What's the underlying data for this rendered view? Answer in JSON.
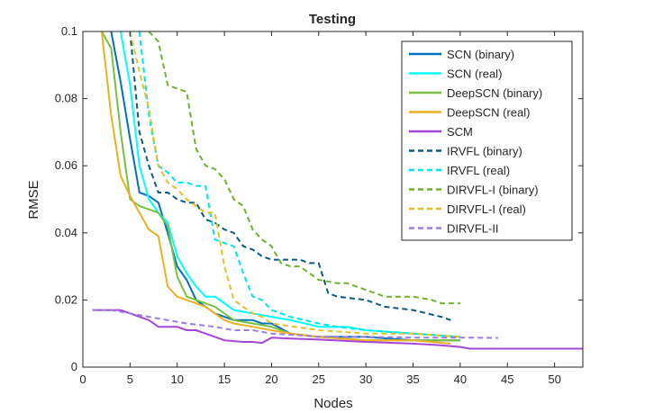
{
  "chart_data": {
    "type": "line",
    "title": "Testing",
    "xlabel": "Nodes",
    "ylabel": "RMSE",
    "xlim": [
      0,
      53
    ],
    "ylim": [
      0,
      0.1
    ],
    "xticks": [
      0,
      5,
      10,
      15,
      20,
      25,
      30,
      35,
      40,
      45,
      50
    ],
    "yticks": [
      0,
      0.02,
      0.04,
      0.06,
      0.08,
      0.1
    ],
    "ytick_labels": [
      "0",
      "0.02",
      "0.04",
      "0.06",
      "0.08",
      "0.1"
    ],
    "legend_position": "top-right",
    "series": [
      {
        "name": "SCN (binary)",
        "color": "#0072BD",
        "dash": "solid",
        "points": [
          [
            3,
            0.1
          ],
          [
            4,
            0.085
          ],
          [
            5,
            0.068
          ],
          [
            6,
            0.052
          ],
          [
            7,
            0.051
          ],
          [
            8,
            0.049
          ],
          [
            9,
            0.04
          ],
          [
            10,
            0.03
          ],
          [
            11,
            0.026
          ],
          [
            12,
            0.02
          ],
          [
            13,
            0.018
          ],
          [
            14,
            0.016
          ],
          [
            15,
            0.015
          ],
          [
            16,
            0.014
          ],
          [
            18,
            0.014
          ],
          [
            19,
            0.013
          ],
          [
            20,
            0.013
          ],
          [
            22,
            0.01
          ],
          [
            25,
            0.009
          ],
          [
            30,
            0.009
          ],
          [
            35,
            0.008
          ],
          [
            40,
            0.008
          ]
        ]
      },
      {
        "name": "SCN (real)",
        "color": "#00FFFF",
        "dash": "solid",
        "points": [
          [
            4,
            0.1
          ],
          [
            5,
            0.084
          ],
          [
            6,
            0.06
          ],
          [
            7,
            0.05
          ],
          [
            8,
            0.046
          ],
          [
            9,
            0.043
          ],
          [
            10,
            0.033
          ],
          [
            11,
            0.028
          ],
          [
            12,
            0.024
          ],
          [
            13,
            0.021
          ],
          [
            14,
            0.021
          ],
          [
            15,
            0.019
          ],
          [
            16,
            0.017
          ],
          [
            18,
            0.016
          ],
          [
            20,
            0.015
          ],
          [
            22,
            0.014
          ],
          [
            25,
            0.012
          ],
          [
            28,
            0.012
          ],
          [
            30,
            0.011
          ],
          [
            35,
            0.01
          ],
          [
            40,
            0.009
          ]
        ]
      },
      {
        "name": "DeepSCN (binary)",
        "color": "#77C040",
        "dash": "solid",
        "points": [
          [
            2,
            0.1
          ],
          [
            3,
            0.095
          ],
          [
            4,
            0.07
          ],
          [
            5,
            0.05
          ],
          [
            6,
            0.048
          ],
          [
            7,
            0.047
          ],
          [
            8,
            0.046
          ],
          [
            9,
            0.042
          ],
          [
            10,
            0.027
          ],
          [
            11,
            0.021
          ],
          [
            12,
            0.02
          ],
          [
            13,
            0.019
          ],
          [
            14,
            0.018
          ],
          [
            15,
            0.016
          ],
          [
            16,
            0.014
          ],
          [
            18,
            0.013
          ],
          [
            20,
            0.012
          ],
          [
            22,
            0.01
          ],
          [
            25,
            0.009
          ],
          [
            30,
            0.008
          ],
          [
            35,
            0.008
          ],
          [
            40,
            0.008
          ]
        ]
      },
      {
        "name": "DeepSCN (real)",
        "color": "#EDB120",
        "dash": "solid",
        "points": [
          [
            2,
            0.1
          ],
          [
            3,
            0.075
          ],
          [
            4,
            0.057
          ],
          [
            5,
            0.051
          ],
          [
            6,
            0.046
          ],
          [
            7,
            0.041
          ],
          [
            8,
            0.039
          ],
          [
            9,
            0.024
          ],
          [
            10,
            0.021
          ],
          [
            11,
            0.02
          ],
          [
            12,
            0.019
          ],
          [
            13,
            0.018
          ],
          [
            14,
            0.016
          ],
          [
            15,
            0.014
          ],
          [
            16,
            0.013
          ],
          [
            18,
            0.012
          ],
          [
            20,
            0.011
          ],
          [
            22,
            0.01
          ],
          [
            25,
            0.009
          ],
          [
            30,
            0.008
          ],
          [
            35,
            0.008
          ],
          [
            39,
            0.007
          ]
        ]
      },
      {
        "name": "SCM",
        "color": "#A646D6",
        "dash": "solid",
        "points": [
          [
            1,
            0.017
          ],
          [
            4,
            0.017
          ],
          [
            5,
            0.016
          ],
          [
            6,
            0.015
          ],
          [
            7,
            0.014
          ],
          [
            8,
            0.012
          ],
          [
            9,
            0.012
          ],
          [
            10,
            0.012
          ],
          [
            11,
            0.011
          ],
          [
            12,
            0.011
          ],
          [
            13,
            0.01
          ],
          [
            14,
            0.009
          ],
          [
            15,
            0.008
          ],
          [
            17,
            0.0075
          ],
          [
            18,
            0.0075
          ],
          [
            19,
            0.0072
          ],
          [
            20,
            0.0088
          ],
          [
            22,
            0.0085
          ],
          [
            25,
            0.0082
          ],
          [
            30,
            0.0075
          ],
          [
            35,
            0.007
          ],
          [
            38,
            0.0065
          ],
          [
            40,
            0.006
          ],
          [
            41,
            0.0055
          ],
          [
            45,
            0.0055
          ],
          [
            53,
            0.0055
          ]
        ]
      },
      {
        "name": "IRVFL (binary)",
        "color": "#0B5A80",
        "dash": "dashed",
        "points": [
          [
            5,
            0.1
          ],
          [
            6,
            0.07
          ],
          [
            7,
            0.06
          ],
          [
            8,
            0.052
          ],
          [
            9,
            0.052
          ],
          [
            10,
            0.05
          ],
          [
            11,
            0.049
          ],
          [
            12,
            0.049
          ],
          [
            13,
            0.044
          ],
          [
            14,
            0.043
          ],
          [
            15,
            0.041
          ],
          [
            16,
            0.04
          ],
          [
            17,
            0.036
          ],
          [
            18,
            0.035
          ],
          [
            19,
            0.033
          ],
          [
            20,
            0.032
          ],
          [
            21,
            0.032
          ],
          [
            22,
            0.032
          ],
          [
            23,
            0.032
          ],
          [
            24,
            0.031
          ],
          [
            25,
            0.031
          ],
          [
            26,
            0.022
          ],
          [
            27,
            0.021
          ],
          [
            30,
            0.02
          ],
          [
            32,
            0.018
          ],
          [
            35,
            0.017
          ],
          [
            38,
            0.015
          ],
          [
            39,
            0.014
          ]
        ]
      },
      {
        "name": "IRVFL (real)",
        "color": "#00E5E5",
        "dash": "dashed",
        "points": [
          [
            6,
            0.1
          ],
          [
            7,
            0.075
          ],
          [
            8,
            0.06
          ],
          [
            9,
            0.058
          ],
          [
            10,
            0.055
          ],
          [
            11,
            0.055
          ],
          [
            12,
            0.054
          ],
          [
            13,
            0.054
          ],
          [
            14,
            0.038
          ],
          [
            15,
            0.037
          ],
          [
            16,
            0.036
          ],
          [
            17,
            0.028
          ],
          [
            18,
            0.021
          ],
          [
            19,
            0.02
          ],
          [
            20,
            0.017
          ],
          [
            22,
            0.015
          ],
          [
            25,
            0.013
          ],
          [
            27,
            0.012
          ],
          [
            30,
            0.011
          ],
          [
            35,
            0.01
          ],
          [
            40,
            0.009
          ]
        ]
      },
      {
        "name": "DIRVFL-I (binary)",
        "color": "#6FB22D",
        "dash": "dashed",
        "points": [
          [
            7,
            0.1
          ],
          [
            8,
            0.097
          ],
          [
            9,
            0.084
          ],
          [
            10,
            0.083
          ],
          [
            11,
            0.082
          ],
          [
            12,
            0.065
          ],
          [
            13,
            0.06
          ],
          [
            14,
            0.059
          ],
          [
            15,
            0.056
          ],
          [
            16,
            0.05
          ],
          [
            17,
            0.048
          ],
          [
            18,
            0.041
          ],
          [
            19,
            0.038
          ],
          [
            20,
            0.036
          ],
          [
            21,
            0.031
          ],
          [
            22,
            0.03
          ],
          [
            23,
            0.03
          ],
          [
            24,
            0.028
          ],
          [
            25,
            0.026
          ],
          [
            27,
            0.025
          ],
          [
            28,
            0.025
          ],
          [
            30,
            0.023
          ],
          [
            32,
            0.021
          ],
          [
            35,
            0.021
          ],
          [
            37,
            0.02
          ],
          [
            38,
            0.019
          ],
          [
            39,
            0.019
          ],
          [
            40,
            0.019
          ]
        ]
      },
      {
        "name": "DIRVFL-I (real)",
        "color": "#E0C22B",
        "dash": "dashed",
        "points": [
          [
            5,
            0.1
          ],
          [
            6,
            0.088
          ],
          [
            7,
            0.077
          ],
          [
            8,
            0.06
          ],
          [
            9,
            0.055
          ],
          [
            10,
            0.053
          ],
          [
            11,
            0.05
          ],
          [
            12,
            0.048
          ],
          [
            13,
            0.046
          ],
          [
            14,
            0.046
          ],
          [
            15,
            0.03
          ],
          [
            16,
            0.02
          ],
          [
            17,
            0.018
          ],
          [
            18,
            0.016
          ],
          [
            19,
            0.015
          ],
          [
            20,
            0.013
          ],
          [
            25,
            0.011
          ],
          [
            30,
            0.01
          ],
          [
            35,
            0.01
          ],
          [
            40,
            0.009
          ]
        ]
      },
      {
        "name": "DIRVFL-II",
        "color": "#9B7BE2",
        "dash": "dashed",
        "points": [
          [
            1,
            0.017
          ],
          [
            3,
            0.017
          ],
          [
            5,
            0.016
          ],
          [
            7,
            0.015
          ],
          [
            9,
            0.014
          ],
          [
            11,
            0.013
          ],
          [
            14,
            0.012
          ],
          [
            16,
            0.011
          ],
          [
            18,
            0.011
          ],
          [
            20,
            0.01
          ],
          [
            23,
            0.0095
          ],
          [
            25,
            0.009
          ],
          [
            30,
            0.009
          ],
          [
            35,
            0.0088
          ],
          [
            40,
            0.0088
          ],
          [
            44,
            0.0087
          ]
        ]
      }
    ]
  }
}
